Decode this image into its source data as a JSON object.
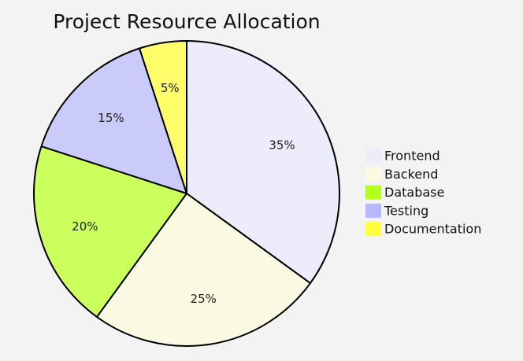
{
  "chart_data": {
    "type": "pie",
    "title": "Project Resource Allocation",
    "categories": [
      "Frontend",
      "Backend",
      "Database",
      "Testing",
      "Documentation"
    ],
    "values": [
      35,
      25,
      20,
      15,
      5
    ],
    "value_labels": [
      "35%",
      "25%",
      "20%",
      "15%",
      "5%"
    ],
    "colors": [
      "#ececfa",
      "#fafae3",
      "#cbff5e",
      "#cbcbfa",
      "#fefe6a"
    ],
    "legend_colors": [
      "#ececfa",
      "#fafae3",
      "#b5ff20",
      "#b8b8ff",
      "#ffff40"
    ],
    "legend_position": "right",
    "start": "top",
    "direction": "clockwise"
  }
}
